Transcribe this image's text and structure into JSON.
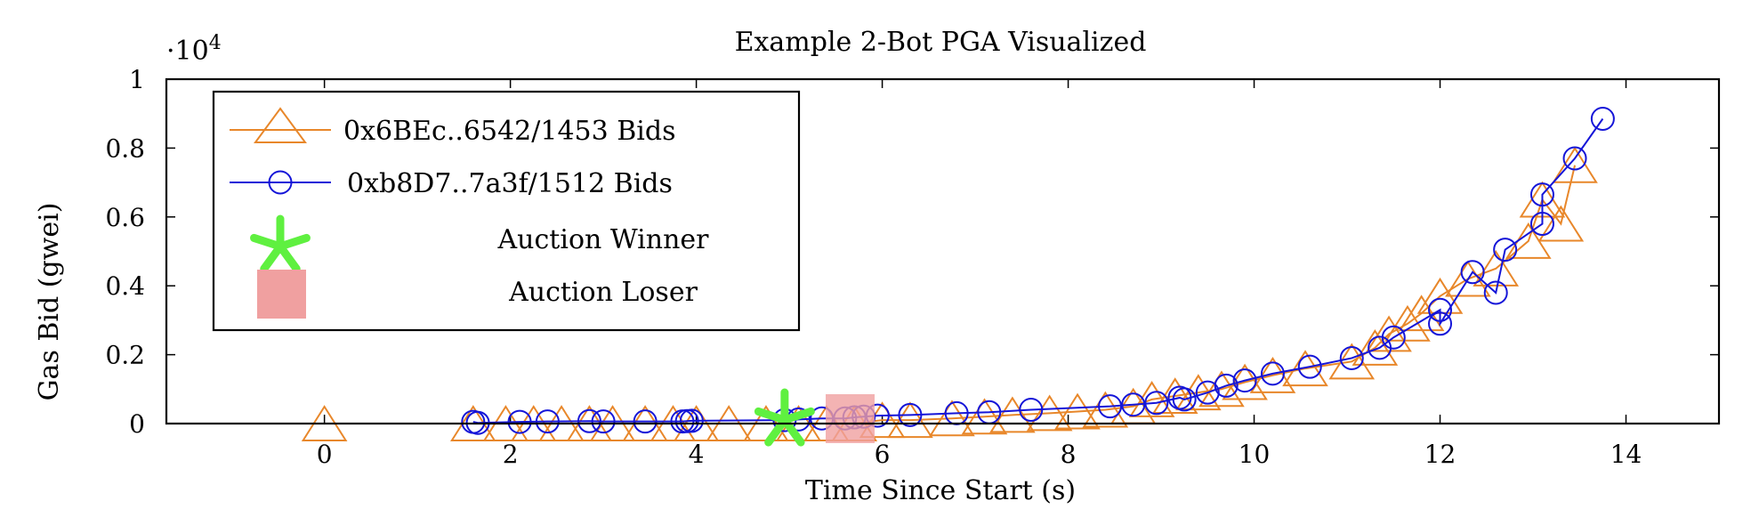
{
  "chart_data": {
    "type": "line",
    "title": "Example 2-Bot PGA Visualized",
    "xlabel": "Time Since Start (s)",
    "ylabel": "Gas Bid (gwei)",
    "y_multiplier": "·10",
    "y_multiplier_exponent": "4",
    "xlim": [
      -1.7,
      15.0
    ],
    "ylim": [
      0,
      10000
    ],
    "x_ticks": [
      0,
      2,
      4,
      6,
      8,
      10,
      12,
      14
    ],
    "y_ticks": [
      0,
      2000,
      4000,
      6000,
      8000,
      10000
    ],
    "y_tick_labels": [
      "0",
      "0.2",
      "0.4",
      "0.6",
      "0.8",
      "1"
    ],
    "grid": false,
    "legend_position": "top-left",
    "series": [
      {
        "name": "0x6BEc..6542/1453 Bids",
        "color": "#e8872a",
        "marker": "triangle",
        "x": [
          0,
          1.6,
          1.95,
          2.25,
          2.55,
          2.85,
          3.1,
          3.45,
          3.75,
          4.0,
          4.35,
          4.75,
          5.1,
          5.4,
          5.7,
          6.0,
          6.3,
          6.75,
          7.1,
          7.4,
          7.8,
          8.1,
          8.4,
          8.7,
          8.9,
          9.15,
          9.4,
          9.65,
          9.9,
          10.2,
          10.55,
          11.05,
          11.3,
          11.45,
          11.65,
          11.8,
          12.0,
          12.3,
          12.6,
          12.95,
          13.1,
          13.3,
          13.45
        ],
        "y": [
          0,
          0,
          0,
          0,
          0,
          0,
          0,
          0,
          0,
          0,
          0,
          0,
          0,
          0,
          0,
          100,
          100,
          150,
          200,
          250,
          300,
          350,
          400,
          500,
          700,
          800,
          900,
          1000,
          1200,
          1400,
          1600,
          1800,
          2200,
          2600,
          2900,
          3200,
          3700,
          4200,
          4500,
          5300,
          6500,
          5800,
          7500
        ]
      },
      {
        "name": "0xb8D7..7a3f/1512 Bids",
        "color": "#1515d8",
        "marker": "circle",
        "x": [
          1.6,
          1.65,
          2.1,
          2.4,
          2.85,
          3.0,
          3.45,
          3.85,
          3.9,
          3.95,
          4.95,
          5.1,
          5.35,
          5.6,
          5.7,
          5.8,
          5.95,
          6.3,
          6.8,
          7.15,
          7.6,
          8.45,
          8.7,
          8.95,
          9.2,
          9.25,
          9.5,
          9.7,
          9.9,
          10.2,
          10.6,
          11.05,
          11.35,
          11.5,
          12.0,
          12.0,
          12.35,
          12.6,
          12.7,
          13.1,
          13.1,
          13.45,
          13.75
        ],
        "y": [
          50,
          20,
          50,
          60,
          70,
          60,
          60,
          60,
          70,
          80,
          100,
          120,
          150,
          150,
          180,
          200,
          230,
          250,
          300,
          330,
          400,
          500,
          550,
          600,
          750,
          700,
          900,
          1100,
          1250,
          1450,
          1650,
          1900,
          2200,
          2500,
          3300,
          2900,
          4400,
          3800,
          5050,
          5800,
          6650,
          7700,
          8850
        ]
      }
    ],
    "annotations": [
      {
        "name": "Auction Winner",
        "marker": "asterisk",
        "color": "#5ff040",
        "x": 4.95,
        "y": 0
      },
      {
        "name": "Auction Loser",
        "marker": "square",
        "color": "#f0a0a0",
        "x": 5.65,
        "y": 0
      }
    ]
  }
}
